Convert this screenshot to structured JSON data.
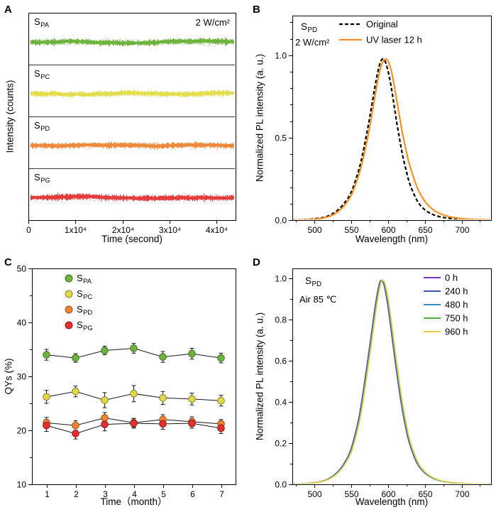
{
  "figure": {
    "background": "#ffffff"
  },
  "chart_data": [
    {
      "id": "A",
      "panel_letter": "A",
      "type": "line",
      "xlabel": "Time (second)",
      "ylabel": "Intensity (counts)",
      "annotation": "2 W/cm²",
      "x_range": [
        0,
        44000
      ],
      "x_ticks": [
        {
          "v": 0,
          "l": "0"
        },
        {
          "v": 10000,
          "l": "1x10⁴"
        },
        {
          "v": 20000,
          "l": "2x10⁴"
        },
        {
          "v": 30000,
          "l": "3x10⁴"
        },
        {
          "v": 40000,
          "l": "4x10⁴"
        }
      ],
      "subpanels": [
        {
          "name_main": "S",
          "name_sub": "PA",
          "color": "#6eb43c",
          "trend": "constant"
        },
        {
          "name_main": "S",
          "name_sub": "PC",
          "color": "#e4de4c",
          "trend": "constant"
        },
        {
          "name_main": "S",
          "name_sub": "PD",
          "color": "#f2883a",
          "trend": "constant"
        },
        {
          "name_main": "S",
          "name_sub": "PG",
          "color": "#e83b3b",
          "trend": "constant"
        }
      ]
    },
    {
      "id": "B",
      "panel_letter": "B",
      "type": "line",
      "xlabel": "Wavelength (nm)",
      "ylabel": "Normalized PL intensity (a. u.)",
      "sample_main": "S",
      "sample_sub": "PD",
      "power_label": "2 W/cm²",
      "x_range": [
        470,
        740
      ],
      "y_range": [
        0,
        1.24
      ],
      "x_minor_step": 25,
      "y_minor_step": 0.1,
      "x_ticks": [
        {
          "v": 500,
          "l": "500"
        },
        {
          "v": 550,
          "l": "550"
        },
        {
          "v": 600,
          "l": "600"
        },
        {
          "v": 650,
          "l": "650"
        },
        {
          "v": 700,
          "l": "700"
        }
      ],
      "y_ticks": [
        {
          "v": 0,
          "l": "0.0"
        },
        {
          "v": 0.5,
          "l": "0.5"
        },
        {
          "v": 1,
          "l": "1.0"
        }
      ],
      "x": [
        470,
        480,
        490,
        500,
        510,
        520,
        530,
        540,
        550,
        560,
        565,
        570,
        575,
        580,
        585,
        590,
        595,
        600,
        605,
        610,
        615,
        620,
        625,
        630,
        640,
        650,
        660,
        670,
        680,
        690,
        700,
        710,
        720,
        730,
        740
      ],
      "series": [
        {
          "name": "Original",
          "color": "#000000",
          "dash": [
            5,
            3
          ],
          "line_width": 2.2,
          "values": [
            0.001,
            0.002,
            0.004,
            0.008,
            0.014,
            0.028,
            0.055,
            0.1,
            0.17,
            0.3,
            0.39,
            0.5,
            0.62,
            0.75,
            0.875,
            0.962,
            0.972,
            0.905,
            0.79,
            0.645,
            0.51,
            0.39,
            0.295,
            0.215,
            0.115,
            0.063,
            0.036,
            0.021,
            0.013,
            0.008,
            0.005,
            0.003,
            0.002,
            0.002,
            0.001
          ]
        },
        {
          "name": "UV laser 12 h",
          "color": "#f59120",
          "dash": null,
          "line_width": 2.2,
          "values": [
            0.001,
            0.002,
            0.003,
            0.006,
            0.011,
            0.022,
            0.045,
            0.085,
            0.15,
            0.27,
            0.35,
            0.45,
            0.56,
            0.69,
            0.82,
            0.925,
            0.972,
            0.965,
            0.895,
            0.775,
            0.645,
            0.52,
            0.415,
            0.325,
            0.195,
            0.115,
            0.068,
            0.041,
            0.025,
            0.015,
            0.009,
            0.006,
            0.004,
            0.003,
            0.002
          ]
        }
      ]
    },
    {
      "id": "C",
      "panel_letter": "C",
      "type": "scatter",
      "xlabel": "Time（month）",
      "ylabel": "QYs (%)",
      "x_range": [
        0.5,
        7.5
      ],
      "y_range": [
        10,
        50
      ],
      "y_minor_step": 5,
      "x_ticks": [
        {
          "v": 1,
          "l": "1"
        },
        {
          "v": 2,
          "l": "2"
        },
        {
          "v": 3,
          "l": "3"
        },
        {
          "v": 4,
          "l": "4"
        },
        {
          "v": 5,
          "l": "5"
        },
        {
          "v": 6,
          "l": "6"
        },
        {
          "v": 7,
          "l": "7"
        }
      ],
      "y_ticks": [
        {
          "v": 10,
          "l": "10"
        },
        {
          "v": 20,
          "l": "20"
        },
        {
          "v": 30,
          "l": "30"
        },
        {
          "v": 40,
          "l": "40"
        },
        {
          "v": 50,
          "l": "50"
        }
      ],
      "categories": [
        1,
        2,
        3,
        4,
        5,
        6,
        7
      ],
      "series": [
        {
          "name_main": "S",
          "name_sub": "PA",
          "color": "#6eb43c",
          "values": [
            34.0,
            33.4,
            34.8,
            35.2,
            33.6,
            34.2,
            33.4
          ],
          "errors": [
            1.0,
            0.8,
            0.8,
            0.9,
            1.0,
            1.0,
            0.9
          ]
        },
        {
          "name_main": "S",
          "name_sub": "PC",
          "color": "#e0d84a",
          "values": [
            26.2,
            27.2,
            25.6,
            26.8,
            26.0,
            25.8,
            25.5
          ],
          "errors": [
            1.2,
            1.0,
            1.4,
            1.5,
            1.2,
            1.1,
            1.0
          ]
        },
        {
          "name_main": "S",
          "name_sub": "PD",
          "color": "#f2832e",
          "values": [
            21.4,
            20.9,
            22.3,
            21.4,
            22.0,
            21.6,
            21.2
          ],
          "errors": [
            1.0,
            0.9,
            1.0,
            0.8,
            0.9,
            0.9,
            0.8
          ]
        },
        {
          "name_main": "S",
          "name_sub": "PG",
          "color": "#e62f2f",
          "values": [
            20.9,
            19.4,
            21.1,
            21.3,
            21.2,
            21.3,
            20.4
          ],
          "errors": [
            1.1,
            1.0,
            1.2,
            0.9,
            1.0,
            0.9,
            1.0
          ]
        }
      ]
    },
    {
      "id": "D",
      "panel_letter": "D",
      "type": "line",
      "xlabel": "Wavelength (nm)",
      "ylabel": "Normalized PL intensity (a. u.)",
      "sample_main": "S",
      "sample_sub": "PD",
      "condition_label": "Air 85 ℃",
      "x_range": [
        470,
        740
      ],
      "y_range": [
        0,
        1.05
      ],
      "x_minor_step": 25,
      "y_minor_step": 0.1,
      "x_ticks": [
        {
          "v": 500,
          "l": "500"
        },
        {
          "v": 550,
          "l": "550"
        },
        {
          "v": 600,
          "l": "600"
        },
        {
          "v": 650,
          "l": "650"
        },
        {
          "v": 700,
          "l": "700"
        }
      ],
      "y_ticks": [
        {
          "v": 0,
          "l": "0.0"
        },
        {
          "v": 0.2,
          "l": "0.2"
        },
        {
          "v": 0.4,
          "l": "0.4"
        },
        {
          "v": 0.6,
          "l": "0.6"
        },
        {
          "v": 0.8,
          "l": "0.8"
        },
        {
          "v": 1,
          "l": "1.0"
        }
      ],
      "x": [
        470,
        480,
        490,
        500,
        510,
        520,
        530,
        540,
        550,
        560,
        565,
        570,
        575,
        580,
        585,
        590,
        595,
        600,
        605,
        610,
        615,
        620,
        625,
        630,
        640,
        650,
        660,
        670,
        680,
        690,
        700,
        710,
        720,
        730,
        740
      ],
      "base_values": [
        0.001,
        0.002,
        0.004,
        0.008,
        0.014,
        0.027,
        0.052,
        0.095,
        0.165,
        0.3,
        0.4,
        0.52,
        0.645,
        0.775,
        0.9,
        0.985,
        0.975,
        0.885,
        0.755,
        0.615,
        0.485,
        0.37,
        0.275,
        0.2,
        0.105,
        0.058,
        0.033,
        0.019,
        0.012,
        0.007,
        0.005,
        0.003,
        0.002,
        0.002,
        0.001
      ],
      "series": [
        {
          "name": "0 h",
          "color": "#7436c8"
        },
        {
          "name": "240 h",
          "color": "#3f55b4"
        },
        {
          "name": "480 h",
          "color": "#3a8fc0"
        },
        {
          "name": "750 h",
          "color": "#49b43a"
        },
        {
          "name": "960 h",
          "color": "#e7cf3c"
        }
      ]
    }
  ]
}
